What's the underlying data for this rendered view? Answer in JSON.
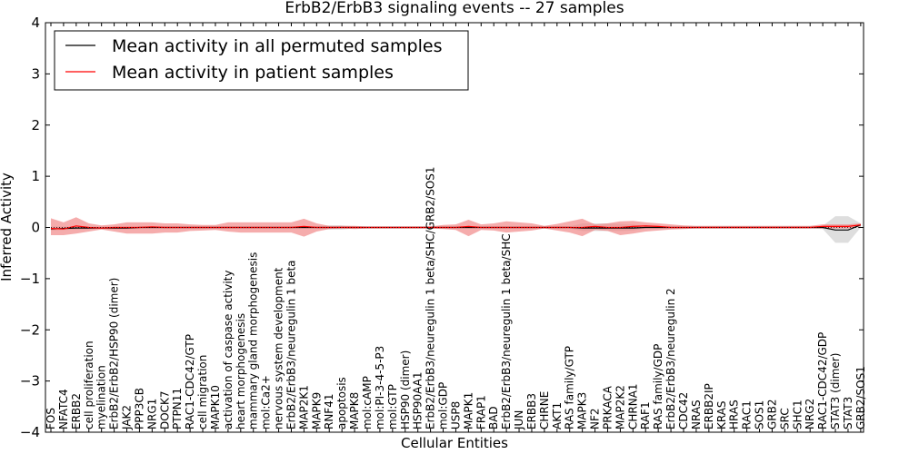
{
  "chart_data": {
    "type": "line",
    "title": "ErbB2/ErbB3 signaling events -- 27 samples",
    "xlabel": "Cellular Entities",
    "ylabel": "Inferred Activity",
    "ylim": [
      -4,
      4
    ],
    "yticks": [
      -4,
      -3,
      -2,
      -1,
      0,
      1,
      2,
      3,
      4
    ],
    "legend_position": "top-left",
    "colors": {
      "permuted": "#000000",
      "patient": "#ff0000",
      "patient_band": "#f08080",
      "permuted_band": "#c8c8c8"
    },
    "categories": [
      "FOS",
      "NFATC4",
      "ERBB2",
      "cell proliferation",
      "myelination",
      "ErbB2/ErbB2/HSP90 (dimer)",
      "JAK2",
      "PPP3CB",
      "NRG1",
      "DOCK7",
      "PTPN11",
      "RAC1-CDC42/GTP",
      "cell migration",
      "MAPK10",
      "activation of caspase activity",
      "heart morphogenesis",
      "mammary gland morphogenesis",
      "mol:Ca2+",
      "nervous system development",
      "ErbB2/ErbB3/neuregulin 1 beta",
      "MAP2K1",
      "MAPK9",
      "RNF41",
      "apoptosis",
      "MAPK8",
      "mol:cAMP",
      "mol:PI-3-4-5-P3",
      "mol:GTP",
      "HSP90 (dimer)",
      "HSP90AA1",
      "ErbB2/ErbB3/neuregulin 1 beta/SHC/GRB2/SOS1",
      "mol:GDP",
      "USP8",
      "MAPK1",
      "FRAP1",
      "BAD",
      "ErbB2/ErbB3/neuregulin 1 beta/SHC",
      "JUN",
      "ERBB3",
      "CHRNE",
      "AKT1",
      "RAS family/GTP",
      "MAPK3",
      "NF2",
      "PRKACA",
      "MAP2K2",
      "CHRNA1",
      "RAF1",
      "RAS family/GDP",
      "ErbB2/ErbB3/neuregulin 2",
      "CDC42",
      "NRAS",
      "ERBB2IP",
      "KRAS",
      "HRAS",
      "RAC1",
      "SOS1",
      "GRB2",
      "SRC",
      "SHC1",
      "NRG2",
      "RAC1-CDC42/GDP",
      "STAT3 (dimer)",
      "STAT3",
      "GRB2/SOS1"
    ],
    "series": [
      {
        "name": "Mean activity in all permuted samples",
        "values": [
          -0.03,
          -0.02,
          -0.01,
          -0.01,
          -0.01,
          -0.01,
          -0.01,
          0.0,
          0.0,
          0.0,
          0.0,
          0.0,
          0.0,
          0.0,
          0.0,
          0.0,
          0.0,
          0.0,
          0.0,
          0.0,
          0.0,
          0.0,
          0.0,
          0.0,
          0.0,
          0.0,
          0.0,
          0.0,
          0.0,
          0.0,
          0.0,
          0.0,
          0.0,
          0.0,
          0.0,
          0.0,
          0.0,
          0.0,
          0.0,
          0.0,
          0.0,
          0.0,
          -0.01,
          -0.01,
          -0.01,
          -0.01,
          -0.01,
          0.0,
          0.0,
          0.0,
          0.0,
          0.0,
          0.0,
          0.0,
          0.0,
          0.0,
          0.0,
          0.0,
          0.0,
          0.0,
          0.0,
          0.0,
          -0.05,
          -0.05,
          0.05
        ],
        "lower": [
          -0.06,
          -0.05,
          -0.04,
          -0.03,
          -0.03,
          -0.03,
          -0.03,
          -0.02,
          -0.02,
          -0.02,
          -0.02,
          -0.02,
          -0.02,
          -0.02,
          -0.02,
          -0.02,
          -0.02,
          -0.02,
          -0.02,
          -0.02,
          -0.02,
          -0.02,
          -0.04,
          -0.04,
          -0.02,
          -0.02,
          -0.02,
          -0.02,
          -0.02,
          -0.02,
          -0.02,
          -0.02,
          -0.02,
          -0.02,
          -0.02,
          -0.02,
          -0.02,
          -0.02,
          -0.02,
          -0.02,
          -0.02,
          -0.02,
          -0.07,
          -0.07,
          -0.07,
          -0.07,
          -0.06,
          -0.02,
          -0.02,
          -0.02,
          -0.02,
          -0.02,
          -0.02,
          -0.02,
          -0.02,
          -0.02,
          -0.02,
          -0.02,
          -0.02,
          -0.02,
          -0.02,
          -0.03,
          -0.3,
          -0.3,
          0.0
        ],
        "upper": [
          0.02,
          0.02,
          0.02,
          0.02,
          0.02,
          0.02,
          0.02,
          0.02,
          0.02,
          0.02,
          0.02,
          0.02,
          0.02,
          0.02,
          0.02,
          0.02,
          0.02,
          0.02,
          0.02,
          0.02,
          0.02,
          0.02,
          0.04,
          0.04,
          0.02,
          0.02,
          0.02,
          0.02,
          0.02,
          0.02,
          0.02,
          0.02,
          0.02,
          0.02,
          0.02,
          0.02,
          0.02,
          0.02,
          0.02,
          0.02,
          0.02,
          0.02,
          0.08,
          0.08,
          0.08,
          0.07,
          0.06,
          0.02,
          0.02,
          0.02,
          0.02,
          0.02,
          0.02,
          0.02,
          0.02,
          0.02,
          0.02,
          0.02,
          0.02,
          0.02,
          0.02,
          0.03,
          0.22,
          0.22,
          0.08
        ]
      },
      {
        "name": "Mean activity in patient samples",
        "values": [
          -0.02,
          -0.03,
          0.03,
          0.0,
          -0.01,
          0.0,
          0.0,
          0.0,
          0.01,
          0.0,
          0.0,
          0.0,
          0.0,
          0.0,
          0.0,
          0.0,
          0.0,
          0.0,
          0.0,
          0.0,
          0.02,
          0.0,
          0.0,
          0.0,
          0.0,
          0.0,
          0.0,
          0.0,
          0.0,
          0.0,
          0.0,
          0.0,
          0.0,
          0.02,
          0.0,
          0.0,
          0.0,
          0.0,
          0.0,
          0.0,
          0.0,
          0.0,
          0.0,
          0.02,
          0.0,
          0.0,
          0.02,
          0.03,
          0.02,
          0.0,
          0.0,
          0.0,
          0.0,
          0.0,
          0.0,
          0.0,
          0.0,
          0.0,
          0.0,
          0.0,
          0.0,
          0.02,
          0.02,
          0.02,
          0.05
        ],
        "lower": [
          -0.15,
          -0.15,
          -0.12,
          -0.08,
          -0.04,
          -0.08,
          -0.12,
          -0.12,
          -0.12,
          -0.1,
          -0.1,
          -0.07,
          -0.06,
          -0.05,
          -0.08,
          -0.1,
          -0.1,
          -0.1,
          -0.1,
          -0.1,
          -0.18,
          -0.08,
          -0.03,
          -0.02,
          -0.03,
          -0.02,
          -0.02,
          -0.02,
          -0.02,
          -0.02,
          -0.02,
          -0.03,
          -0.05,
          -0.17,
          -0.05,
          -0.06,
          -0.1,
          -0.08,
          -0.06,
          -0.02,
          -0.06,
          -0.1,
          -0.17,
          -0.05,
          -0.07,
          -0.15,
          -0.12,
          -0.08,
          -0.06,
          -0.04,
          -0.03,
          -0.02,
          -0.02,
          -0.02,
          -0.02,
          -0.02,
          -0.02,
          -0.02,
          -0.02,
          -0.02,
          -0.02,
          -0.02,
          -0.02,
          -0.02,
          0.02
        ],
        "upper": [
          0.18,
          0.1,
          0.2,
          0.08,
          0.04,
          0.06,
          0.1,
          0.1,
          0.1,
          0.08,
          0.08,
          0.06,
          0.05,
          0.05,
          0.1,
          0.1,
          0.1,
          0.1,
          0.1,
          0.1,
          0.17,
          0.08,
          0.03,
          0.03,
          0.03,
          0.02,
          0.02,
          0.02,
          0.02,
          0.02,
          0.02,
          0.05,
          0.06,
          0.15,
          0.06,
          0.08,
          0.12,
          0.1,
          0.08,
          0.03,
          0.07,
          0.12,
          0.17,
          0.06,
          0.08,
          0.12,
          0.13,
          0.1,
          0.08,
          0.06,
          0.04,
          0.03,
          0.03,
          0.03,
          0.03,
          0.03,
          0.03,
          0.03,
          0.03,
          0.03,
          0.03,
          0.06,
          0.06,
          0.06,
          0.08
        ]
      }
    ]
  }
}
